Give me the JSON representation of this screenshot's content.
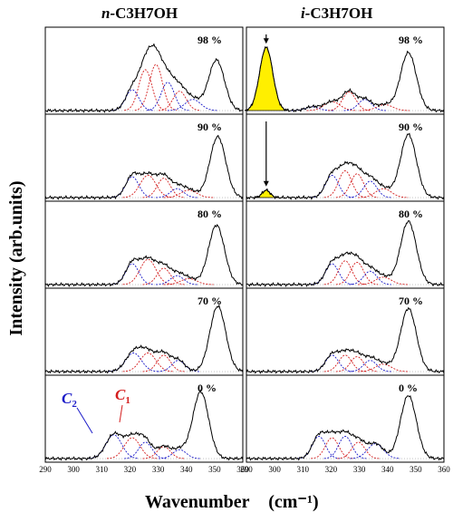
{
  "chart_data": {
    "type": "line",
    "xlabel": "Wavenumber",
    "xlabel_unit": "(cm⁻¹)",
    "ylabel": "Intensity (arb.units)",
    "grid": false,
    "xlim": [
      2860,
      3010
    ],
    "xticks": [
      "290",
      "300",
      "310",
      "320",
      "330",
      "340",
      "350",
      "360"
    ],
    "columns": [
      {
        "title_prefix": "n-",
        "title_formula": "C3H7OH",
        "rows": [
          {
            "label": "98 %",
            "peaks": [
              {
                "x": 2926,
                "h": 0.28,
                "w": 5,
                "c": "b"
              },
              {
                "x": 2936,
                "h": 0.55,
                "w": 5,
                "c": "r"
              },
              {
                "x": 2944,
                "h": 0.62,
                "w": 5,
                "c": "r"
              },
              {
                "x": 2953,
                "h": 0.38,
                "w": 5,
                "c": "b"
              },
              {
                "x": 2962,
                "h": 0.26,
                "w": 5,
                "c": "r"
              },
              {
                "x": 2972,
                "h": 0.15,
                "w": 6,
                "c": "b"
              },
              {
                "x": 2990,
                "h": 0.68,
                "w": 6,
                "c": "k"
              }
            ]
          },
          {
            "label": "90 %",
            "peaks": [
              {
                "x": 2926,
                "h": 0.28,
                "w": 5,
                "c": "b"
              },
              {
                "x": 2938,
                "h": 0.3,
                "w": 6,
                "c": "r"
              },
              {
                "x": 2950,
                "h": 0.26,
                "w": 5,
                "c": "r"
              },
              {
                "x": 2960,
                "h": 0.12,
                "w": 5,
                "c": "b"
              },
              {
                "x": 2969,
                "h": 0.1,
                "w": 6,
                "c": "r"
              },
              {
                "x": 2991,
                "h": 0.82,
                "w": 6,
                "c": "k"
              }
            ]
          },
          {
            "label": "80 %",
            "peaks": [
              {
                "x": 2926,
                "h": 0.28,
                "w": 5,
                "c": "b"
              },
              {
                "x": 2938,
                "h": 0.34,
                "w": 6,
                "c": "r"
              },
              {
                "x": 2950,
                "h": 0.22,
                "w": 5,
                "c": "r"
              },
              {
                "x": 2960,
                "h": 0.12,
                "w": 5,
                "c": "b"
              },
              {
                "x": 2969,
                "h": 0.08,
                "w": 6,
                "c": "r"
              },
              {
                "x": 2990,
                "h": 0.8,
                "w": 6,
                "c": "k"
              }
            ]
          },
          {
            "label": "70 %",
            "peaks": [
              {
                "x": 2927,
                "h": 0.25,
                "w": 6,
                "c": "b"
              },
              {
                "x": 2938,
                "h": 0.25,
                "w": 6,
                "c": "r"
              },
              {
                "x": 2950,
                "h": 0.22,
                "w": 5,
                "c": "r"
              },
              {
                "x": 2961,
                "h": 0.15,
                "w": 5,
                "c": "b"
              },
              {
                "x": 2991,
                "h": 0.88,
                "w": 6,
                "c": "k"
              }
            ]
          },
          {
            "label": "0 %",
            "peaks": [
              {
                "x": 2912,
                "h": 0.32,
                "w": 6,
                "c": "b"
              },
              {
                "x": 2926,
                "h": 0.28,
                "w": 6,
                "c": "r"
              },
              {
                "x": 2936,
                "h": 0.22,
                "w": 5,
                "c": "b"
              },
              {
                "x": 2950,
                "h": 0.16,
                "w": 5,
                "c": "r"
              },
              {
                "x": 2962,
                "h": 0.12,
                "w": 5,
                "c": "b"
              },
              {
                "x": 2978,
                "h": 0.9,
                "w": 6,
                "c": "k"
              }
            ]
          }
        ]
      },
      {
        "title_prefix": "i-",
        "title_formula": "C3H7OH",
        "rows": [
          {
            "label": "98 %",
            "filled_peak": {
              "x": 2875,
              "h": 0.85,
              "w": 5
            },
            "arrow_x": 2875,
            "peaks": [
              {
                "x": 2910,
                "h": 0.05,
                "w": 5,
                "c": "b"
              },
              {
                "x": 2925,
                "h": 0.12,
                "w": 6,
                "c": "r"
              },
              {
                "x": 2938,
                "h": 0.25,
                "w": 5,
                "c": "r"
              },
              {
                "x": 2950,
                "h": 0.15,
                "w": 5,
                "c": "b"
              },
              {
                "x": 2965,
                "h": 0.08,
                "w": 6,
                "c": "r"
              },
              {
                "x": 2983,
                "h": 0.78,
                "w": 6,
                "c": "k"
              }
            ]
          },
          {
            "label": "90 %",
            "filled_peak": {
              "x": 2875,
              "h": 0.1,
              "w": 3
            },
            "arrow_x": 2875,
            "peaks": [
              {
                "x": 2925,
                "h": 0.3,
                "w": 5,
                "c": "b"
              },
              {
                "x": 2935,
                "h": 0.36,
                "w": 5,
                "c": "r"
              },
              {
                "x": 2944,
                "h": 0.32,
                "w": 5,
                "c": "r"
              },
              {
                "x": 2954,
                "h": 0.22,
                "w": 5,
                "c": "b"
              },
              {
                "x": 2964,
                "h": 0.12,
                "w": 6,
                "c": "r"
              },
              {
                "x": 2983,
                "h": 0.85,
                "w": 6,
                "c": "k"
              }
            ]
          },
          {
            "label": "80 %",
            "peaks": [
              {
                "x": 2925,
                "h": 0.28,
                "w": 5,
                "c": "b"
              },
              {
                "x": 2935,
                "h": 0.32,
                "w": 5,
                "c": "r"
              },
              {
                "x": 2944,
                "h": 0.3,
                "w": 5,
                "c": "r"
              },
              {
                "x": 2954,
                "h": 0.18,
                "w": 5,
                "c": "b"
              },
              {
                "x": 2964,
                "h": 0.1,
                "w": 6,
                "c": "r"
              },
              {
                "x": 2983,
                "h": 0.85,
                "w": 6,
                "c": "k"
              }
            ]
          },
          {
            "label": "70 %",
            "peaks": [
              {
                "x": 2925,
                "h": 0.22,
                "w": 5,
                "c": "b"
              },
              {
                "x": 2935,
                "h": 0.22,
                "w": 5,
                "c": "r"
              },
              {
                "x": 2944,
                "h": 0.2,
                "w": 5,
                "c": "r"
              },
              {
                "x": 2954,
                "h": 0.15,
                "w": 5,
                "c": "b"
              },
              {
                "x": 2964,
                "h": 0.1,
                "w": 6,
                "c": "r"
              },
              {
                "x": 2983,
                "h": 0.85,
                "w": 6,
                "c": "k"
              }
            ]
          },
          {
            "label": "0 %",
            "peaks": [
              {
                "x": 2915,
                "h": 0.3,
                "w": 5,
                "c": "b"
              },
              {
                "x": 2925,
                "h": 0.28,
                "w": 5,
                "c": "r"
              },
              {
                "x": 2935,
                "h": 0.3,
                "w": 5,
                "c": "b"
              },
              {
                "x": 2945,
                "h": 0.22,
                "w": 5,
                "c": "r"
              },
              {
                "x": 2958,
                "h": 0.2,
                "w": 6,
                "c": "b"
              },
              {
                "x": 2983,
                "h": 0.85,
                "w": 6,
                "c": "k"
              }
            ]
          }
        ]
      }
    ],
    "annotations": [
      {
        "text": "C",
        "subscript": "2",
        "color": "#1a1ac8"
      },
      {
        "text": "C",
        "subscript": "1",
        "color": "#d41e1e"
      }
    ],
    "colors": {
      "b": "#1a1ac8",
      "r": "#d41e1e",
      "k": "#000000",
      "fill": "#ffef00"
    }
  }
}
